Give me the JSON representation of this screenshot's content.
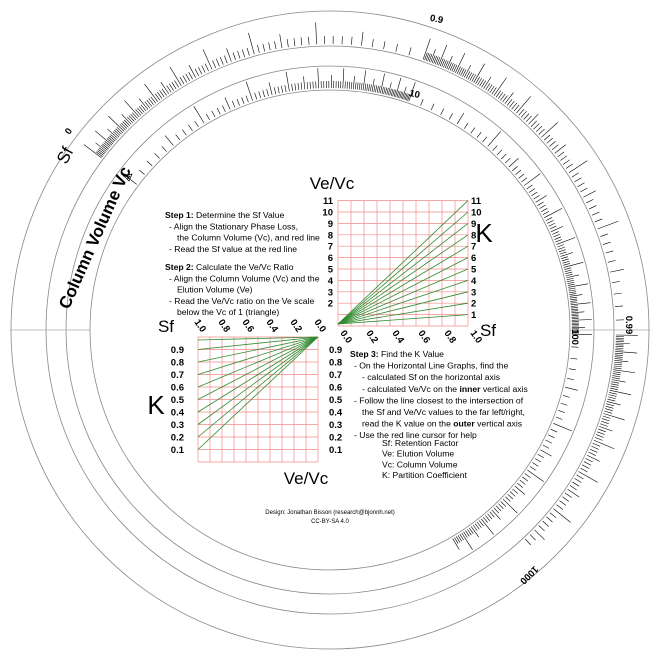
{
  "outer_scale": {
    "sf_label": "Sf",
    "start": "0",
    "labels": [
      "0.9",
      "0.99"
    ]
  },
  "inner_scale": {
    "vc_label": "Column Volume Vc",
    "start": "1",
    "labels": [
      "10",
      "100",
      "1000"
    ]
  },
  "instructions": {
    "step1": {
      "label": "Step 1:",
      "text": "Determine the Sf Value",
      "lines": [
        "- Align the Stationary Phase Loss,",
        "the Column Volume (Vc), and red line",
        "- Read the Sf value at the red line"
      ]
    },
    "step2": {
      "label": "Step 2:",
      "text": "Calculate the Ve/Vc Ratio",
      "lines": [
        "- Align the Column Volume (Vc) and the",
        "Elution Volume (Ve)",
        "- Read the Ve/Vc ratio on the Ve scale",
        "below the Vc of 1 (triangle)"
      ]
    },
    "step3": {
      "label": "Step 3:",
      "text": "Find the K Value",
      "lines": [
        [
          "- On the Horizontal Line Graphs, find the"
        ],
        [
          "- calculated Sf on the horizontal axis"
        ],
        [
          "- calculated Ve/Vc on the ",
          {
            "text": "inner",
            "bold": true
          },
          " vertical axis"
        ],
        [
          "- Follow the line closest to the intersection of"
        ],
        [
          "the Sf and Ve/Vc values to the far left/right,"
        ],
        [
          "read the K value on the ",
          {
            "text": "outer",
            "bold": true
          },
          " vertical axis"
        ],
        [
          "- Use the red line cursor for help"
        ]
      ]
    }
  },
  "upper_graph": {
    "y_title": "Ve/Vc",
    "k_title": "K",
    "x_title": "Sf",
    "inner_axis": [
      "11",
      "10",
      "9",
      "8",
      "7",
      "6",
      "5",
      "4",
      "3",
      "2"
    ],
    "outer_axis": [
      "11",
      "10",
      "9",
      "8",
      "7",
      "6",
      "5",
      "4",
      "3",
      "2",
      "1"
    ],
    "x_axis": [
      "0.0",
      "0.2",
      "0.4",
      "0.6",
      "0.8",
      "1.0"
    ]
  },
  "lower_graph": {
    "x_title": "Sf",
    "k_title": "K",
    "y_title": "Ve/Vc",
    "x_axis": [
      "1.0",
      "0.8",
      "0.6",
      "0.4",
      "0.2",
      "0.0"
    ],
    "outer_axis": [
      "0.9",
      "0.8",
      "0.7",
      "0.6",
      "0.5",
      "0.4",
      "0.3",
      "0.2",
      "0.1"
    ],
    "inner_axis": [
      "0.9",
      "0.8",
      "0.7",
      "0.6",
      "0.5",
      "0.4",
      "0.3",
      "0.2",
      "0.1"
    ]
  },
  "legend": [
    "Sf: Retention Factor",
    "Ve: Elution Volume",
    "Vc: Column Volume",
    "K: Partition Coefficient"
  ],
  "credit": [
    "Design: Jonathan Bisson (research@bjonnh.net)",
    "CC-BY-SA 4.0"
  ]
}
